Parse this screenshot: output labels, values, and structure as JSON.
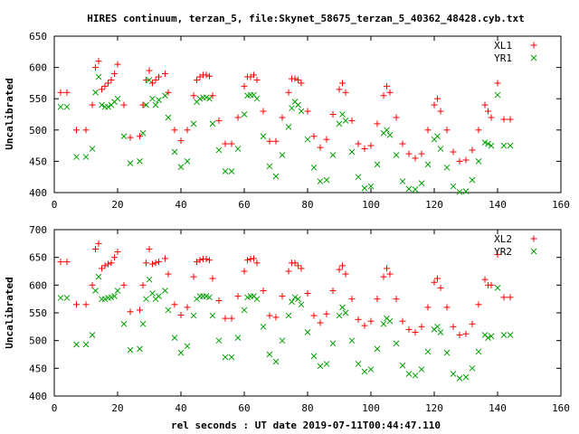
{
  "figure": {
    "title": "HIRES continuum, terzan_5, file:Skynet_58675_terzan_5_40362_48428.cyb.txt",
    "xlabel": "rel seconds : UT date 2019-07-11T00:44:47.110"
  },
  "chart_data": [
    {
      "type": "scatter",
      "title": "HIRES continuum, terzan_5, file:Skynet_58675_terzan_5_40362_48428.cyb.txt",
      "xlabel": "",
      "ylabel": "Uncalibrated",
      "xlim": [
        0,
        160
      ],
      "ylim": [
        400,
        650
      ],
      "xticks": [
        "0",
        "20",
        "40",
        "60",
        "80",
        "100",
        "120",
        "140",
        "160"
      ],
      "yticks": [
        "400",
        "450",
        "500",
        "550",
        "600",
        "650"
      ],
      "grid": false,
      "legend": "top-right",
      "series": [
        {
          "name": "XL1",
          "marker": "+",
          "color": "#ff0000",
          "x": [
            2,
            4,
            7,
            10,
            12,
            13,
            14,
            15,
            16,
            17,
            18,
            19,
            20,
            22,
            24,
            27,
            28,
            29,
            30,
            31,
            32,
            33,
            35,
            36,
            38,
            40,
            42,
            44,
            45,
            46,
            47,
            48,
            49,
            50,
            52,
            54,
            56,
            58,
            60,
            61,
            62,
            63,
            64,
            66,
            68,
            70,
            72,
            74,
            75,
            76,
            77,
            78,
            80,
            82,
            84,
            86,
            88,
            90,
            91,
            92,
            94,
            96,
            98,
            100,
            102,
            104,
            105,
            106,
            108,
            110,
            112,
            114,
            116,
            118,
            120,
            121,
            122,
            124,
            126,
            128,
            130,
            132,
            134,
            136,
            137,
            138,
            140,
            142,
            144
          ],
          "y": [
            560,
            560,
            500,
            500,
            540,
            600,
            610,
            565,
            570,
            575,
            580,
            590,
            605,
            540,
            488,
            490,
            540,
            580,
            595,
            575,
            580,
            585,
            590,
            560,
            500,
            483,
            500,
            555,
            580,
            585,
            588,
            588,
            586,
            555,
            515,
            478,
            478,
            520,
            570,
            585,
            585,
            588,
            580,
            530,
            482,
            482,
            520,
            560,
            582,
            582,
            580,
            575,
            530,
            490,
            472,
            485,
            525,
            565,
            575,
            560,
            515,
            478,
            470,
            475,
            510,
            555,
            570,
            560,
            520,
            478,
            462,
            455,
            462,
            500,
            540,
            550,
            530,
            500,
            465,
            450,
            452,
            468,
            500,
            540,
            530,
            520,
            575,
            517,
            517
          ]
        },
        {
          "name": "YR1",
          "marker": "x",
          "color": "#00a000",
          "x": [
            2,
            4,
            7,
            10,
            12,
            13,
            14,
            15,
            16,
            17,
            18,
            19,
            20,
            22,
            24,
            27,
            28,
            29,
            30,
            31,
            32,
            33,
            35,
            36,
            38,
            40,
            42,
            44,
            45,
            46,
            47,
            48,
            49,
            50,
            52,
            54,
            56,
            58,
            60,
            61,
            62,
            63,
            64,
            66,
            68,
            70,
            72,
            74,
            75,
            76,
            77,
            78,
            80,
            82,
            84,
            86,
            88,
            90,
            91,
            92,
            94,
            96,
            98,
            100,
            102,
            104,
            105,
            106,
            108,
            110,
            112,
            114,
            116,
            118,
            120,
            121,
            122,
            124,
            126,
            128,
            130,
            132,
            134,
            136,
            137,
            138,
            140,
            142,
            144
          ],
          "y": [
            537,
            537,
            457,
            457,
            470,
            560,
            585,
            540,
            537,
            537,
            540,
            545,
            550,
            490,
            447,
            450,
            495,
            540,
            580,
            550,
            540,
            548,
            555,
            520,
            465,
            441,
            450,
            510,
            545,
            550,
            552,
            552,
            550,
            510,
            468,
            434,
            434,
            470,
            525,
            555,
            556,
            556,
            550,
            490,
            442,
            426,
            460,
            505,
            535,
            545,
            540,
            530,
            485,
            440,
            418,
            420,
            460,
            510,
            525,
            515,
            465,
            425,
            407,
            410,
            445,
            495,
            500,
            492,
            460,
            418,
            406,
            405,
            415,
            445,
            485,
            490,
            470,
            440,
            410,
            401,
            402,
            420,
            450,
            480,
            478,
            475,
            556,
            475,
            475
          ]
        }
      ]
    },
    {
      "type": "scatter",
      "xlabel": "rel seconds : UT date 2019-07-11T00:44:47.110",
      "ylabel": "Uncalibrated",
      "xlim": [
        0,
        160
      ],
      "ylim": [
        400,
        700
      ],
      "xticks": [
        "0",
        "20",
        "40",
        "60",
        "80",
        "100",
        "120",
        "140",
        "160"
      ],
      "yticks": [
        "400",
        "450",
        "500",
        "550",
        "600",
        "650",
        "700"
      ],
      "grid": false,
      "legend": "top-right",
      "series": [
        {
          "name": "XL2",
          "marker": "+",
          "color": "#ff0000",
          "x": [
            2,
            4,
            7,
            10,
            12,
            13,
            14,
            15,
            16,
            17,
            18,
            19,
            20,
            22,
            24,
            27,
            28,
            29,
            30,
            31,
            32,
            33,
            35,
            36,
            38,
            40,
            42,
            44,
            45,
            46,
            47,
            48,
            49,
            50,
            52,
            54,
            56,
            58,
            60,
            61,
            62,
            63,
            64,
            66,
            68,
            70,
            72,
            74,
            75,
            76,
            77,
            78,
            80,
            82,
            84,
            86,
            88,
            90,
            91,
            92,
            94,
            96,
            98,
            100,
            102,
            104,
            105,
            106,
            108,
            110,
            112,
            114,
            116,
            118,
            120,
            121,
            122,
            124,
            126,
            128,
            130,
            132,
            134,
            136,
            137,
            138,
            140,
            142,
            144
          ],
          "y": [
            642,
            642,
            565,
            565,
            600,
            665,
            675,
            630,
            635,
            638,
            640,
            650,
            660,
            600,
            552,
            555,
            600,
            640,
            665,
            638,
            640,
            642,
            648,
            620,
            565,
            546,
            560,
            615,
            642,
            645,
            647,
            647,
            645,
            612,
            572,
            540,
            540,
            580,
            625,
            645,
            647,
            648,
            640,
            590,
            545,
            542,
            580,
            625,
            640,
            640,
            635,
            630,
            585,
            545,
            532,
            548,
            590,
            628,
            635,
            620,
            575,
            538,
            527,
            535,
            575,
            615,
            630,
            620,
            575,
            535,
            520,
            515,
            525,
            560,
            605,
            612,
            595,
            560,
            525,
            510,
            512,
            530,
            565,
            610,
            600,
            600,
            655,
            578,
            578
          ]
        },
        {
          "name": "YR2",
          "marker": "x",
          "color": "#00a000",
          "x": [
            2,
            4,
            7,
            10,
            12,
            13,
            14,
            15,
            16,
            17,
            18,
            19,
            20,
            22,
            24,
            27,
            28,
            29,
            30,
            31,
            32,
            33,
            35,
            36,
            38,
            40,
            42,
            44,
            45,
            46,
            47,
            48,
            49,
            50,
            52,
            54,
            56,
            58,
            60,
            61,
            62,
            63,
            64,
            66,
            68,
            70,
            72,
            74,
            75,
            76,
            77,
            78,
            80,
            82,
            84,
            86,
            88,
            90,
            91,
            92,
            94,
            96,
            98,
            100,
            102,
            104,
            105,
            106,
            108,
            110,
            112,
            114,
            116,
            118,
            120,
            121,
            122,
            124,
            126,
            128,
            130,
            132,
            134,
            136,
            137,
            138,
            140,
            142,
            144
          ],
          "y": [
            577,
            577,
            493,
            493,
            510,
            590,
            615,
            575,
            575,
            577,
            578,
            580,
            590,
            530,
            483,
            485,
            530,
            575,
            610,
            585,
            575,
            580,
            590,
            555,
            505,
            478,
            490,
            545,
            575,
            580,
            580,
            580,
            578,
            545,
            500,
            470,
            470,
            505,
            555,
            578,
            580,
            580,
            575,
            525,
            475,
            462,
            500,
            545,
            570,
            578,
            575,
            565,
            515,
            472,
            454,
            458,
            495,
            545,
            560,
            550,
            500,
            458,
            444,
            448,
            485,
            530,
            540,
            535,
            495,
            455,
            440,
            437,
            448,
            480,
            520,
            525,
            515,
            478,
            440,
            432,
            434,
            450,
            480,
            510,
            505,
            508,
            595,
            510,
            510
          ]
        }
      ]
    }
  ]
}
